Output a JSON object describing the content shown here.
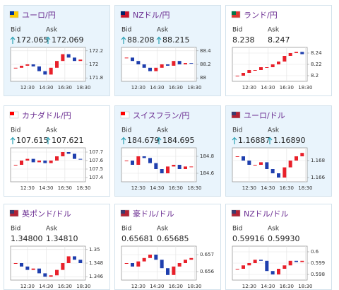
{
  "cards": [
    {
      "name": "ユーロ/円",
      "bid_label": "Bid",
      "ask_label": "Ask",
      "bid": "172.065",
      "ask": "172.069",
      "up": true,
      "highlight": true,
      "flag": [
        "#003399",
        "#ffcc00"
      ],
      "chart": {
        "ylim": [
          171.75,
          172.25
        ],
        "yticks": [
          171.8,
          172,
          172.2
        ],
        "times": [
          "12:30",
          "14:30",
          "16:30",
          "18:30"
        ],
        "closes": [
          171.95,
          171.98,
          172.0,
          171.97,
          171.9,
          171.85,
          171.95,
          172.05,
          172.15,
          172.1,
          172.05,
          172.07
        ]
      }
    },
    {
      "name": "NZドル/円",
      "bid_label": "Bid",
      "ask_label": "Ask",
      "bid": "88.208",
      "ask": "88.215",
      "up": true,
      "highlight": true,
      "flag": [
        "#012169",
        "#cc142b"
      ],
      "chart": {
        "ylim": [
          87.95,
          88.45
        ],
        "yticks": [
          88,
          88.2,
          88.4
        ],
        "times": [
          "12:30",
          "14:30",
          "16:30",
          "18:30"
        ],
        "closes": [
          88.3,
          88.25,
          88.2,
          88.15,
          88.1,
          88.15,
          88.2,
          88.18,
          88.25,
          88.2,
          88.22,
          88.21
        ]
      }
    },
    {
      "name": "ランド/円",
      "bid_label": "Bid",
      "ask_label": "Ask",
      "bid": "8.238",
      "ask": "8.247",
      "up": false,
      "highlight": false,
      "flag": [
        "#007749",
        "#de3831"
      ],
      "chart": {
        "ylim": [
          8.19,
          8.25
        ],
        "yticks": [
          8.2,
          8.22,
          8.24
        ],
        "times": [
          "12:30",
          "14:30",
          "16:30",
          "18:30"
        ],
        "closes": [
          8.2,
          8.205,
          8.21,
          8.21,
          8.215,
          8.215,
          8.22,
          8.225,
          8.235,
          8.24,
          8.242,
          8.238
        ]
      }
    },
    {
      "name": "カナダドル/円",
      "bid_label": "Bid",
      "ask_label": "Ask",
      "bid": "107.615",
      "ask": "107.621",
      "up": true,
      "highlight": false,
      "flag": [
        "#ff0000",
        "#ffffff"
      ],
      "chart": {
        "ylim": [
          107.35,
          107.75
        ],
        "yticks": [
          107.4,
          107.5,
          107.6,
          107.7
        ],
        "times": [
          "12:30",
          "14:30",
          "16:30",
          "18:30"
        ],
        "closes": [
          107.55,
          107.6,
          107.62,
          107.58,
          107.6,
          107.57,
          107.6,
          107.65,
          107.7,
          107.68,
          107.62,
          107.615
        ]
      }
    },
    {
      "name": "スイスフラン/円",
      "bid_label": "Bid",
      "ask_label": "Ask",
      "bid": "184.679",
      "ask": "184.695",
      "up": true,
      "highlight": true,
      "flag": [
        "#ff0000",
        "#ffffff"
      ],
      "chart": {
        "ylim": [
          184.5,
          184.9
        ],
        "yticks": [
          184.6,
          184.8
        ],
        "times": [
          "12:30",
          "14:30",
          "16:30",
          "18:30"
        ],
        "closes": [
          184.75,
          184.7,
          184.8,
          184.78,
          184.72,
          184.65,
          184.6,
          184.68,
          184.7,
          184.65,
          184.68,
          184.68
        ]
      }
    },
    {
      "name": "ユーロ/ドル",
      "bid_label": "Bid",
      "ask_label": "Ask",
      "bid": "1.16887",
      "ask": "1.16890",
      "up": true,
      "highlight": true,
      "flag": [
        "#3c3b6e",
        "#b22234"
      ],
      "chart": {
        "ylim": [
          1.1655,
          1.1695
        ],
        "yticks": [
          1.166,
          1.168
        ],
        "times": [
          "12:30",
          "14:30",
          "16:30",
          "18:30"
        ],
        "closes": [
          1.1685,
          1.168,
          1.1675,
          1.1675,
          1.1678,
          1.167,
          1.1665,
          1.166,
          1.1672,
          1.168,
          1.1685,
          1.1689
        ]
      }
    },
    {
      "name": "英ポンド/ドル",
      "bid_label": "Bid",
      "ask_label": "Ask",
      "bid": "1.34800",
      "ask": "1.34810",
      "up": false,
      "highlight": false,
      "flag": [
        "#3c3b6e",
        "#b22234"
      ],
      "chart": {
        "ylim": [
          1.3455,
          1.3505
        ],
        "yticks": [
          1.346,
          1.348,
          1.35
        ],
        "times": [
          "12:30",
          "14:30",
          "16:30",
          "18:30"
        ],
        "closes": [
          1.348,
          1.3475,
          1.347,
          1.3472,
          1.3465,
          1.346,
          1.3462,
          1.347,
          1.348,
          1.349,
          1.3485,
          1.348
        ]
      }
    },
    {
      "name": "豪ドル/ドル",
      "bid_label": "Bid",
      "ask_label": "Ask",
      "bid": "0.65681",
      "ask": "0.65685",
      "up": false,
      "highlight": false,
      "flag": [
        "#3c3b6e",
        "#b22234"
      ],
      "chart": {
        "ylim": [
          0.6555,
          0.6575
        ],
        "yticks": [
          0.656,
          0.657
        ],
        "times": [
          "12:30",
          "14:30",
          "16:30",
          "18:30"
        ],
        "closes": [
          0.6565,
          0.6563,
          0.6566,
          0.6568,
          0.657,
          0.6567,
          0.6562,
          0.6558,
          0.6563,
          0.6565,
          0.6567,
          0.6568
        ]
      }
    },
    {
      "name": "NZドル/ドル",
      "bid_label": "Bid",
      "ask_label": "Ask",
      "bid": "0.59916",
      "ask": "0.59930",
      "up": false,
      "highlight": false,
      "flag": [
        "#3c3b6e",
        "#b22234"
      ],
      "chart": {
        "ylim": [
          0.5975,
          0.6005
        ],
        "yticks": [
          0.598,
          0.599,
          0.6
        ],
        "times": [
          "12:30",
          "14:30",
          "16:30",
          "18:30"
        ],
        "closes": [
          0.5985,
          0.5988,
          0.599,
          0.5993,
          0.5992,
          0.5983,
          0.598,
          0.5985,
          0.5988,
          0.5992,
          0.5991,
          0.5992
        ]
      }
    }
  ]
}
